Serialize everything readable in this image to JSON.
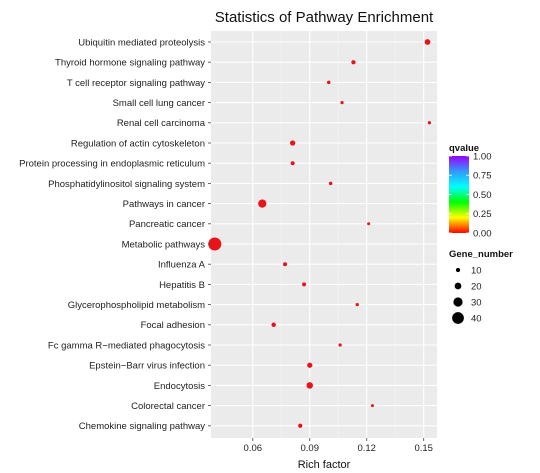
{
  "chart_data": {
    "type": "scatter",
    "title": "Statistics of Pathway Enrichment",
    "xlabel": "Rich factor",
    "xlim": [
      0.038,
      0.157
    ],
    "xticks": [
      0.06,
      0.09,
      0.12,
      0.15
    ],
    "xtick_labels": [
      "0.06",
      "0.09",
      "0.12",
      "0.15"
    ],
    "categories": [
      "Ubiquitin mediated proteolysis",
      "Thyroid hormone signaling pathway",
      "T cell receptor signaling pathway",
      "Small cell lung cancer",
      "Renal cell carcinoma",
      "Regulation of actin cytoskeleton",
      "Protein processing in endoplasmic reticulum",
      "Phosphatidylinositol signaling system",
      "Pathways in cancer",
      "Pancreatic cancer",
      "Metabolic pathways",
      "Influenza A",
      "Hepatitis B",
      "Glycerophospholipid metabolism",
      "Focal adhesion",
      "Fc gamma R−mediated phagocytosis",
      "Epstein−Barr virus infection",
      "Endocytosis",
      "Colorectal cancer",
      "Chemokine signaling pathway"
    ],
    "points": [
      {
        "pathway": "Ubiquitin mediated proteolysis",
        "rich_factor": 0.152,
        "qvalue": 0.0,
        "gene_number": 16
      },
      {
        "pathway": "Thyroid hormone signaling pathway",
        "rich_factor": 0.113,
        "qvalue": 0.0,
        "gene_number": 10
      },
      {
        "pathway": "T cell receptor signaling pathway",
        "rich_factor": 0.1,
        "qvalue": 0.0,
        "gene_number": 7
      },
      {
        "pathway": "Small cell lung cancer",
        "rich_factor": 0.107,
        "qvalue": 0.0,
        "gene_number": 6
      },
      {
        "pathway": "Renal cell carcinoma",
        "rich_factor": 0.153,
        "qvalue": 0.0,
        "gene_number": 6
      },
      {
        "pathway": "Regulation of actin cytoskeleton",
        "rich_factor": 0.081,
        "qvalue": 0.0,
        "gene_number": 14
      },
      {
        "pathway": "Protein processing in endoplasmic reticulum",
        "rich_factor": 0.081,
        "qvalue": 0.0,
        "gene_number": 9
      },
      {
        "pathway": "Phosphatidylinositol signaling system",
        "rich_factor": 0.101,
        "qvalue": 0.0,
        "gene_number": 7
      },
      {
        "pathway": "Pathways in cancer",
        "rich_factor": 0.065,
        "qvalue": 0.0,
        "gene_number": 26
      },
      {
        "pathway": "Pancreatic cancer",
        "rich_factor": 0.121,
        "qvalue": 0.0,
        "gene_number": 5
      },
      {
        "pathway": "Metabolic pathways",
        "rich_factor": 0.04,
        "qvalue": 0.0,
        "gene_number": 45
      },
      {
        "pathway": "Influenza A",
        "rich_factor": 0.077,
        "qvalue": 0.0,
        "gene_number": 9
      },
      {
        "pathway": "Hepatitis B",
        "rich_factor": 0.087,
        "qvalue": 0.0,
        "gene_number": 9
      },
      {
        "pathway": "Glycerophospholipid metabolism",
        "rich_factor": 0.115,
        "qvalue": 0.0,
        "gene_number": 6
      },
      {
        "pathway": "Focal adhesion",
        "rich_factor": 0.071,
        "qvalue": 0.0,
        "gene_number": 11
      },
      {
        "pathway": "Fc gamma R−mediated phagocytosis",
        "rich_factor": 0.106,
        "qvalue": 0.0,
        "gene_number": 6
      },
      {
        "pathway": "Epstein−Barr virus infection",
        "rich_factor": 0.09,
        "qvalue": 0.0,
        "gene_number": 14
      },
      {
        "pathway": "Endocytosis",
        "rich_factor": 0.09,
        "qvalue": 0.0,
        "gene_number": 19
      },
      {
        "pathway": "Colorectal cancer",
        "rich_factor": 0.123,
        "qvalue": 0.0,
        "gene_number": 5
      },
      {
        "pathway": "Chemokine signaling pathway",
        "rich_factor": 0.085,
        "qvalue": 0.0,
        "gene_number": 10
      }
    ],
    "color_legend": {
      "title": "qvalue",
      "range": [
        0.0,
        1.0
      ],
      "ticks": [
        "1.00",
        "0.75",
        "0.50",
        "0.25",
        "0.00"
      ],
      "colors": [
        "#ff0000",
        "#ffff00",
        "#00ff00",
        "#00ffff",
        "#3399ff",
        "#9900ff"
      ]
    },
    "size_legend": {
      "title": "Gene_number",
      "values": [
        10,
        20,
        30,
        40
      ],
      "labels": [
        "10",
        "20",
        "30",
        "40"
      ]
    },
    "point_color": "#e8141a",
    "panel_color": "#ebebeb",
    "grid": true,
    "legend_position": "right"
  }
}
